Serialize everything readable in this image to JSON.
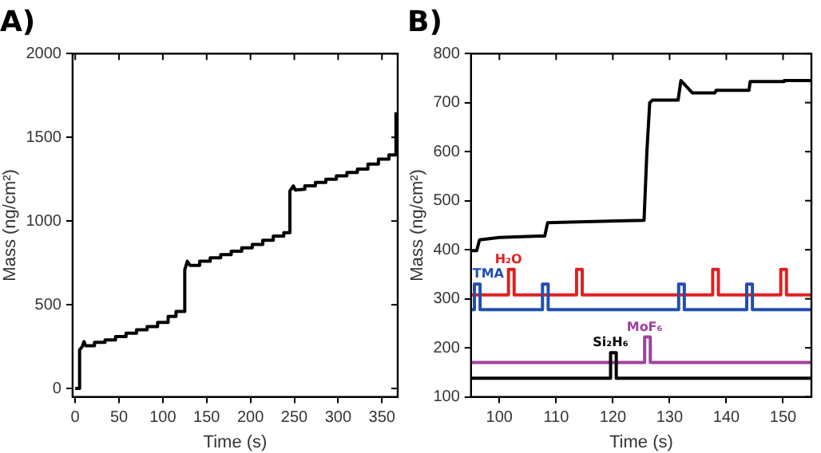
{
  "chart_data": [
    {
      "type": "line",
      "title": "A)",
      "xlabel": "Time (s)",
      "ylabel": "Mass (ng/cm²)",
      "xlim": [
        -3,
        368
      ],
      "ylim": [
        -50,
        2000
      ],
      "xticks": [
        0,
        50,
        100,
        150,
        200,
        250,
        300,
        350
      ],
      "yticks": [
        0,
        500,
        1000,
        1500,
        2000
      ],
      "grid": false,
      "legend": false,
      "marker": "none",
      "series": [
        {
          "color": "#000000",
          "x": [
            0,
            5,
            5,
            8,
            10,
            12,
            22,
            22,
            34,
            34,
            46,
            46,
            58,
            58,
            70,
            70,
            82,
            82,
            94,
            94,
            106,
            106,
            115,
            115,
            125,
            125,
            128,
            131,
            142,
            142,
            154,
            154,
            166,
            166,
            178,
            178,
            190,
            190,
            202,
            202,
            214,
            214,
            226,
            226,
            238,
            238,
            245,
            245,
            249,
            251,
            262,
            262,
            274,
            274,
            286,
            286,
            298,
            298,
            310,
            310,
            322,
            322,
            334,
            334,
            346,
            346,
            358,
            358,
            366,
            366
          ],
          "values": [
            0,
            0,
            230,
            250,
            280,
            255,
            255,
            275,
            275,
            290,
            290,
            310,
            310,
            330,
            330,
            350,
            350,
            370,
            370,
            395,
            395,
            430,
            430,
            460,
            460,
            710,
            760,
            735,
            735,
            760,
            760,
            780,
            780,
            800,
            800,
            820,
            820,
            840,
            840,
            860,
            860,
            885,
            885,
            910,
            910,
            930,
            930,
            1180,
            1210,
            1185,
            1190,
            1210,
            1210,
            1230,
            1230,
            1250,
            1250,
            1270,
            1270,
            1290,
            1290,
            1310,
            1310,
            1340,
            1340,
            1370,
            1370,
            1395,
            1395,
            1650
          ]
        }
      ]
    },
    {
      "type": "line",
      "title": "B)",
      "xlabel": "Time (s)",
      "ylabel": "Mass (ng/cm²)",
      "xlim": [
        95,
        155
      ],
      "ylim": [
        100,
        800
      ],
      "xticks": [
        100,
        110,
        120,
        130,
        140,
        150
      ],
      "yticks": [
        100,
        200,
        300,
        400,
        500,
        600,
        700,
        800
      ],
      "grid": false,
      "legend": false,
      "marker": "none",
      "series": [
        {
          "color": "#000000",
          "x": [
            95,
            96,
            96.5,
            100,
            107,
            108,
            108.5,
            115,
            125.5,
            126,
            126.5,
            127,
            131.5,
            132,
            134,
            138,
            138.2,
            144,
            144.2,
            150,
            150.2,
            155
          ],
          "values": [
            398,
            398,
            420,
            425,
            428,
            428,
            455,
            457,
            460,
            600,
            700,
            705,
            705,
            745,
            720,
            720,
            725,
            725,
            743,
            743,
            745,
            745
          ]
        },
        {
          "name": "TMA",
          "color": "#2050b0",
          "x": [
            95,
            95.6,
            95.6,
            96.6,
            96.6,
            107.6,
            107.6,
            108.6,
            108.6,
            131.6,
            131.6,
            132.6,
            132.6,
            143.6,
            143.6,
            144.6,
            144.6,
            155
          ],
          "values": [
            278,
            278,
            330,
            330,
            278,
            278,
            330,
            330,
            278,
            278,
            330,
            330,
            278,
            278,
            330,
            330,
            278,
            278
          ]
        },
        {
          "name": "H₂O",
          "color": "#e02020",
          "x": [
            95,
            101.6,
            101.6,
            102.6,
            102.6,
            113.6,
            113.6,
            114.6,
            114.6,
            137.6,
            137.6,
            138.6,
            138.6,
            149.6,
            149.6,
            150.6,
            150.6,
            155
          ],
          "values": [
            308,
            308,
            360,
            360,
            308,
            308,
            360,
            360,
            308,
            308,
            360,
            360,
            308,
            308,
            360,
            360,
            308,
            308
          ]
        },
        {
          "name": "Si₂H₆",
          "color": "#000000",
          "x": [
            95,
            119.6,
            119.6,
            120.6,
            120.6,
            155
          ],
          "values": [
            138,
            138,
            190,
            190,
            138,
            138
          ]
        },
        {
          "name": "MoF₆",
          "color": "#a040a0",
          "x": [
            95,
            125.6,
            125.6,
            126.6,
            126.6,
            155
          ],
          "values": [
            170,
            170,
            222,
            222,
            170,
            170
          ]
        }
      ]
    }
  ]
}
